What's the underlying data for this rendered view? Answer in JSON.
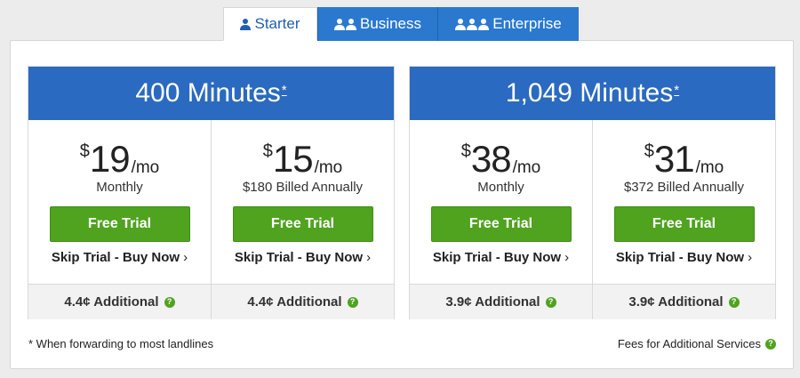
{
  "tabs": [
    {
      "label": "Starter",
      "icon": "person-icon",
      "active": true
    },
    {
      "label": "Business",
      "icon": "two-people-icon",
      "active": false
    },
    {
      "label": "Enterprise",
      "icon": "three-people-icon",
      "active": false
    }
  ],
  "plans": [
    {
      "title": "400 Minutes",
      "asterisk": "*",
      "options": [
        {
          "currency": "$",
          "amount": "19",
          "period": "/mo",
          "billing": "Monthly",
          "trial_label": "Free Trial",
          "skip_label": "Skip Trial - Buy Now",
          "additional": "4.4¢ Additional"
        },
        {
          "currency": "$",
          "amount": "15",
          "period": "/mo",
          "billing": "$180 Billed Annually",
          "trial_label": "Free Trial",
          "skip_label": "Skip Trial - Buy Now",
          "additional": "4.4¢ Additional"
        }
      ]
    },
    {
      "title": "1,049 Minutes",
      "asterisk": "*",
      "options": [
        {
          "currency": "$",
          "amount": "38",
          "period": "/mo",
          "billing": "Monthly",
          "trial_label": "Free Trial",
          "skip_label": "Skip Trial - Buy Now",
          "additional": "3.9¢ Additional"
        },
        {
          "currency": "$",
          "amount": "31",
          "period": "/mo",
          "billing": "$372 Billed Annually",
          "trial_label": "Free Trial",
          "skip_label": "Skip Trial - Buy Now",
          "additional": "3.9¢ Additional"
        }
      ]
    }
  ],
  "footer": {
    "note": "* When forwarding to most landlines",
    "fees_label": "Fees for Additional Services"
  },
  "glyphs": {
    "chevron": "›",
    "question": "?"
  },
  "colors": {
    "accent_blue": "#2a6ac0",
    "tab_blue": "#2a79cf",
    "green": "#4fa31f"
  }
}
